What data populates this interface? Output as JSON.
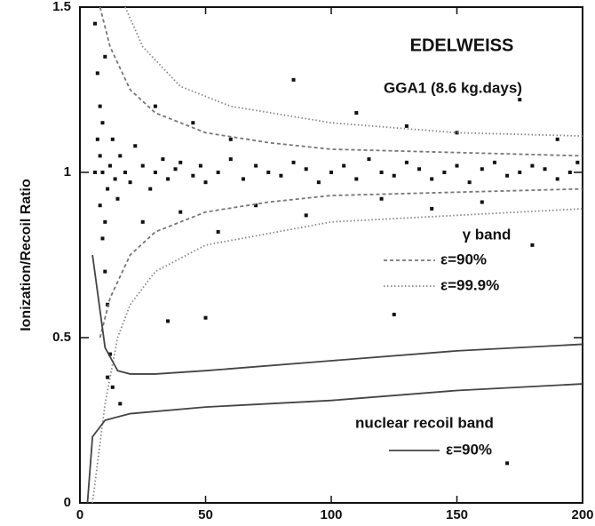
{
  "chart_data": {
    "type": "scatter",
    "title": "EDELWEISS",
    "subtitle": "GGA1 (8.6 kg.days)",
    "y_label": "Ionization/Recoil Ratio",
    "xlim": [
      0,
      200
    ],
    "ylim": [
      0,
      1.5
    ],
    "xticks": [
      0,
      50,
      100,
      150,
      200
    ],
    "yticks": [
      0,
      0.5,
      1,
      1.5
    ],
    "points": {
      "color": "#111111",
      "x": [
        6,
        7,
        7,
        8,
        8,
        9,
        9,
        10,
        10,
        11,
        11,
        12,
        6,
        8,
        9,
        10,
        12,
        13,
        14,
        15,
        16,
        18,
        20,
        22,
        25,
        28,
        30,
        33,
        35,
        38,
        40,
        45,
        48,
        50,
        55,
        60,
        65,
        70,
        75,
        80,
        85,
        90,
        95,
        100,
        105,
        110,
        115,
        120,
        125,
        130,
        135,
        140,
        145,
        150,
        155,
        160,
        165,
        170,
        175,
        180,
        185,
        190,
        195,
        198,
        30,
        45,
        60,
        85,
        110,
        130,
        150,
        175,
        190,
        25,
        40,
        55,
        70,
        90,
        120,
        140,
        160,
        180,
        35,
        50,
        125,
        170,
        11,
        13,
        16
      ],
      "y": [
        1.45,
        1.3,
        1.1,
        1.2,
        0.9,
        1.0,
        0.8,
        1.35,
        0.7,
        0.95,
        0.6,
        0.45,
        1.0,
        1.05,
        1.15,
        0.85,
        1.02,
        1.1,
        0.98,
        0.92,
        1.05,
        1.0,
        0.97,
        1.08,
        1.02,
        0.95,
        1.0,
        1.04,
        0.98,
        1.01,
        1.03,
        0.99,
        1.02,
        0.97,
        1.0,
        1.04,
        0.98,
        1.02,
        1.0,
        0.99,
        1.03,
        1.01,
        0.97,
        1.0,
        1.02,
        0.98,
        1.04,
        1.0,
        0.99,
        1.03,
        1.01,
        0.98,
        1.0,
        1.02,
        0.97,
        1.01,
        1.03,
        0.99,
        1.0,
        1.02,
        1.01,
        0.98,
        1.0,
        1.03,
        1.2,
        1.15,
        1.1,
        1.28,
        1.18,
        1.14,
        1.12,
        1.22,
        1.1,
        0.85,
        0.88,
        0.82,
        0.9,
        0.87,
        0.92,
        0.89,
        0.91,
        0.78,
        0.55,
        0.56,
        0.57,
        0.12,
        0.38,
        0.35,
        0.3
      ]
    },
    "bands": [
      {
        "title": "γ band",
        "curves": [
          {
            "name": "ε=90%",
            "style": "dashed",
            "color": "#777777",
            "upper": {
              "x": [
                8,
                12,
                20,
                30,
                50,
                75,
                100,
                150,
                200
              ],
              "y": [
                1.5,
                1.38,
                1.25,
                1.18,
                1.12,
                1.09,
                1.07,
                1.06,
                1.05
              ]
            },
            "lower": {
              "x": [
                8,
                12,
                20,
                30,
                50,
                75,
                100,
                150,
                200
              ],
              "y": [
                0.5,
                0.62,
                0.75,
                0.82,
                0.88,
                0.91,
                0.93,
                0.94,
                0.95
              ]
            }
          },
          {
            "name": "ε=99.9%",
            "style": "dotted",
            "color": "#888888",
            "upper": {
              "x": [
                18,
                25,
                40,
                60,
                100,
                150,
                200
              ],
              "y": [
                1.5,
                1.38,
                1.26,
                1.2,
                1.15,
                1.12,
                1.11
              ]
            },
            "lower": {
              "x": [
                5,
                10,
                15,
                20,
                30,
                50,
                100,
                200
              ],
              "y": [
                0,
                0.3,
                0.5,
                0.6,
                0.7,
                0.78,
                0.85,
                0.89
              ]
            }
          }
        ]
      },
      {
        "title": "nuclear recoil band",
        "curves": [
          {
            "name": "ε=90%",
            "style": "solid",
            "color": "#444444",
            "upper": {
              "x": [
                5,
                10,
                15,
                20,
                30,
                50,
                100,
                150,
                200
              ],
              "y": [
                0.75,
                0.47,
                0.4,
                0.39,
                0.39,
                0.4,
                0.43,
                0.46,
                0.48
              ]
            },
            "lower": {
              "x": [
                3,
                5,
                10,
                20,
                50,
                100,
                150,
                200
              ],
              "y": [
                0,
                0.2,
                0.25,
                0.27,
                0.29,
                0.31,
                0.34,
                0.36
              ]
            }
          }
        ]
      }
    ]
  }
}
